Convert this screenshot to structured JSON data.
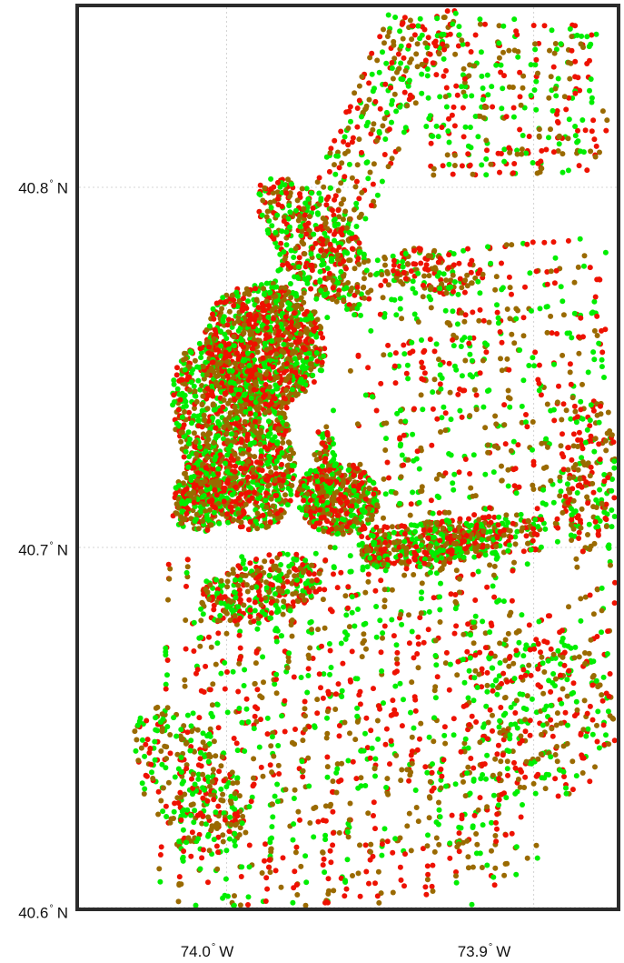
{
  "map": {
    "colors": {
      "green": "#00ee00",
      "red": "#ee1100",
      "olive": "#9a6a00",
      "frame": "#2b2b2b",
      "grid": "#c8c8c8"
    },
    "lat_ticks": [
      {
        "value": 40.8,
        "num": "40.8",
        "deg": "°",
        "hem": "N"
      },
      {
        "value": 40.7,
        "num": "40.7",
        "deg": "°",
        "hem": "N"
      },
      {
        "value": 40.6,
        "num": "40.6",
        "deg": "°",
        "hem": "N"
      }
    ],
    "lon_ticks": [
      {
        "value": -74.0,
        "num": "74.0",
        "deg": "°",
        "hem": "W"
      },
      {
        "value": -73.9,
        "num": "73.9",
        "deg": "°",
        "hem": "W"
      }
    ],
    "extent": {
      "lat_min": 40.6,
      "lat_max": 40.85,
      "lon_min": -74.048,
      "lon_max": -73.873
    },
    "marker_colors": [
      "green",
      "red",
      "olive"
    ]
  }
}
